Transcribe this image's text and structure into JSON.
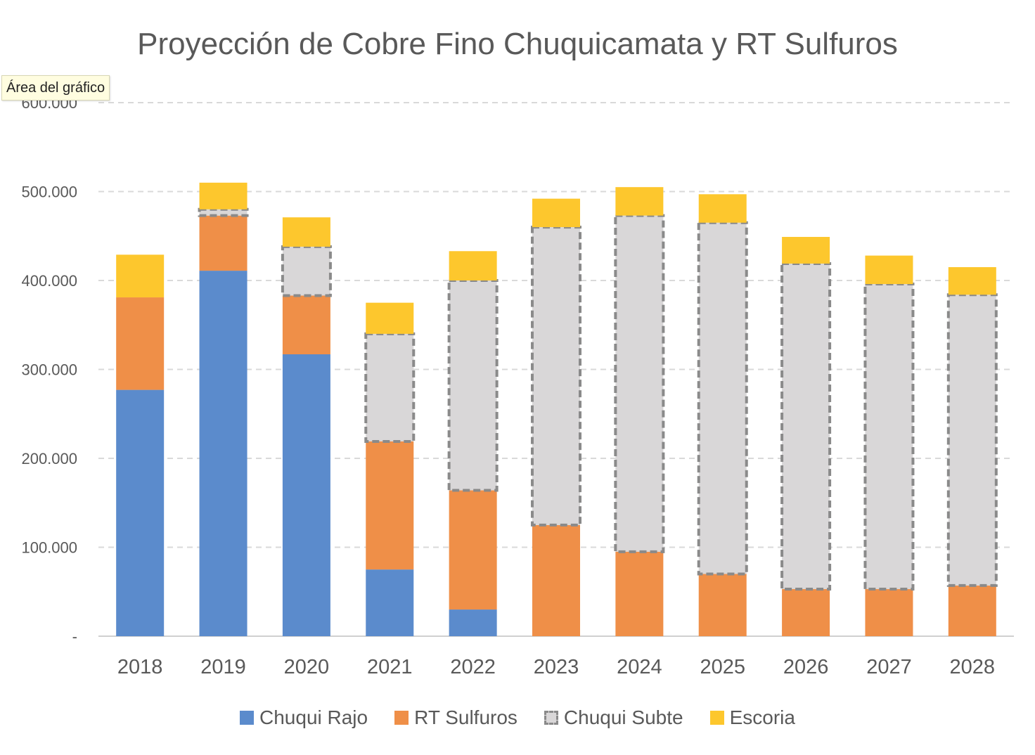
{
  "chart_data": {
    "type": "bar",
    "stacked": true,
    "title": "Proyección de Cobre Fino Chuquicamata y RT Sulfuros",
    "categories": [
      "2018",
      "2019",
      "2020",
      "2021",
      "2022",
      "2023",
      "2024",
      "2025",
      "2026",
      "2027",
      "2028"
    ],
    "series": [
      {
        "name": "Chuqui Rajo",
        "color": "#5b8bcc",
        "values": [
          277000,
          411000,
          317000,
          75000,
          30000,
          0,
          0,
          0,
          0,
          0,
          0
        ]
      },
      {
        "name": "RT Sulfuros",
        "color": "#ef8f48",
        "values": [
          104000,
          62000,
          66000,
          144000,
          134000,
          125000,
          95000,
          70000,
          53000,
          53000,
          57000
        ]
      },
      {
        "name": "Chuqui Subte",
        "color": "#d9d7d8",
        "border": "#8a8a8a",
        "dashed": true,
        "values": [
          0,
          7000,
          55000,
          121000,
          236000,
          335000,
          378000,
          395000,
          366000,
          343000,
          327000
        ]
      },
      {
        "name": "Escoria",
        "color": "#fdc72d",
        "values": [
          48000,
          30000,
          33000,
          35000,
          33000,
          32000,
          32000,
          32000,
          30000,
          32000,
          31000
        ]
      }
    ],
    "ylim": [
      0,
      600000
    ],
    "yticks": [
      0,
      100000,
      200000,
      300000,
      400000,
      500000,
      600000
    ],
    "ytick_labels": [
      "-",
      "100.000",
      "200.000",
      "300.000",
      "400.000",
      "500.000",
      "600.000"
    ],
    "grid": true,
    "legend_position": "bottom"
  },
  "tooltip": "Área del gráfico"
}
